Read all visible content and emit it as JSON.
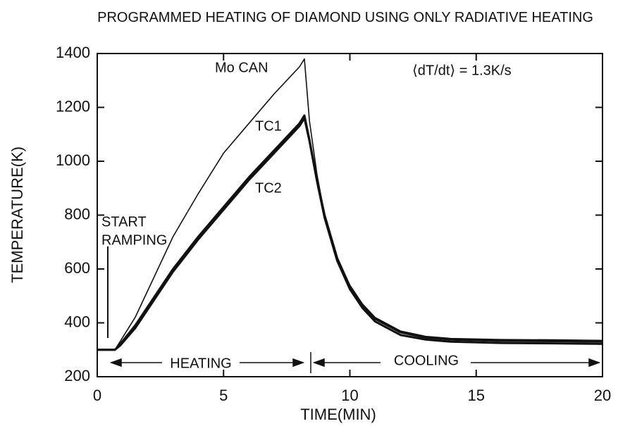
{
  "chart_data": {
    "type": "line",
    "title": "PROGRAMMED HEATING OF DIAMOND USING ONLY RADIATIVE HEATING",
    "xlabel": "TIME(MIN)",
    "ylabel": "TEMPERATURE(K)",
    "x": [
      0,
      0.7,
      0.9,
      1.5,
      2,
      3,
      4,
      5,
      6,
      7,
      8,
      8.2,
      8.4,
      8.7,
      9,
      9.5,
      10,
      10.5,
      11,
      12,
      13,
      14,
      16,
      18,
      20
    ],
    "series": [
      {
        "name": "Mo CAN",
        "color": "#111111",
        "values": [
          300,
          300,
          330,
          420,
          520,
          720,
          880,
          1030,
          1140,
          1250,
          1350,
          1380,
          1150,
          950,
          800,
          640,
          540,
          470,
          420,
          370,
          350,
          342,
          338,
          337,
          335
        ]
      },
      {
        "name": "TC1",
        "color": "#111111",
        "values": [
          300,
          300,
          320,
          390,
          460,
          600,
          720,
          830,
          940,
          1040,
          1140,
          1170,
          1080,
          930,
          800,
          640,
          535,
          465,
          415,
          365,
          345,
          338,
          333,
          332,
          330
        ]
      },
      {
        "name": "TC2",
        "color": "#111111",
        "values": [
          300,
          300,
          315,
          380,
          450,
          590,
          710,
          820,
          930,
          1030,
          1130,
          1160,
          1075,
          925,
          790,
          630,
          525,
          455,
          405,
          355,
          338,
          330,
          325,
          324,
          322
        ]
      }
    ],
    "annotations": [
      "⟨dT/dt⟩ = 1.3K/s",
      "START",
      "RAMPING",
      "HEATING",
      "COOLING"
    ],
    "xlim": [
      0,
      20
    ],
    "xticks": [
      0,
      5,
      10,
      15,
      20
    ],
    "ylim": [
      200,
      1400
    ],
    "yticks": [
      200,
      400,
      600,
      800,
      1000,
      1200,
      1400
    ],
    "grid": false
  }
}
